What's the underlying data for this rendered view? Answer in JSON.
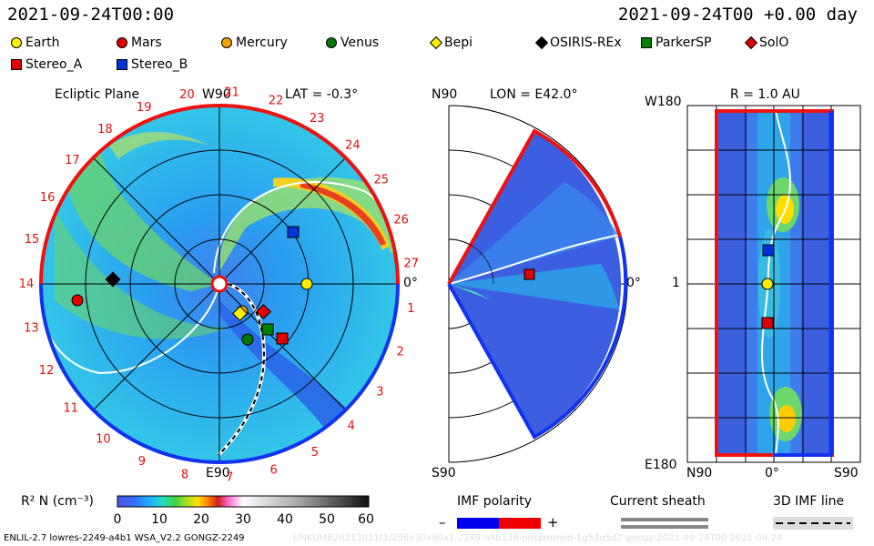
{
  "header": {
    "date_left": "2021-09-24T00:00",
    "date_right": "2021-09-24T00 +0.00 day"
  },
  "legend": [
    {
      "name": "Earth",
      "color": "#ffee00",
      "shape": "circle"
    },
    {
      "name": "Mars",
      "color": "#e00000",
      "shape": "circle"
    },
    {
      "name": "Mercury",
      "color": "#f0a000",
      "shape": "circle"
    },
    {
      "name": "Venus",
      "color": "#007700",
      "shape": "circle"
    },
    {
      "name": "Bepi",
      "color": "#ffee00",
      "shape": "diamond"
    },
    {
      "name": "OSIRIS-REx",
      "color": "#000000",
      "shape": "diamond"
    },
    {
      "name": "ParkerSP",
      "color": "#008000",
      "shape": "square"
    },
    {
      "name": "SolO",
      "color": "#e00000",
      "shape": "diamond"
    },
    {
      "name": "Stereo_A",
      "color": "#e00000",
      "shape": "square"
    },
    {
      "name": "Stereo_B",
      "color": "#0033dd",
      "shape": "square"
    }
  ],
  "ecliptic": {
    "title": "Ecliptic Plane",
    "lat": "LAT = -0.3°",
    "top_label": "W90",
    "bottom_label": "E90",
    "right_label": "0°",
    "carrington_labels": [
      "1",
      "2",
      "3",
      "4",
      "5",
      "6",
      "7",
      "8",
      "9",
      "10",
      "11",
      "12",
      "13",
      "14",
      "15",
      "16",
      "17",
      "18",
      "19",
      "20",
      "21",
      "22",
      "23",
      "24",
      "25",
      "26",
      "27"
    ]
  },
  "meridional": {
    "lon": "LON = E42.0°",
    "top_label": "N90",
    "bottom_label": "S90",
    "right_label": "0°"
  },
  "radial": {
    "title": "R = 1.0 AU",
    "top_left": "W180",
    "mid_left": "1",
    "bottom_left": "E180",
    "x_labels": [
      "N90",
      "0°",
      "S90"
    ]
  },
  "colorbar": {
    "label": "R² N (cm⁻³)",
    "ticks": [
      "0",
      "10",
      "20",
      "30",
      "40",
      "50",
      "60"
    ]
  },
  "imf": {
    "title": "IMF polarity",
    "minus": "–",
    "plus": "+",
    "negative_color": "#0000ee",
    "positive_color": "#ee0000"
  },
  "sheath": {
    "title": "Current sheath"
  },
  "line3d": {
    "title": "3D IMF line"
  },
  "footer": {
    "left": "ENLIL-2.7 lowres-2249-a4b1 WSA_V2.2 GONGZ-2249",
    "right": "UNKUMB20213011t1/256x30x90x1-2249-a4b136-nospmmed-1g53q5d2-gongz-2021-09-24T00    2021-09-24"
  }
}
